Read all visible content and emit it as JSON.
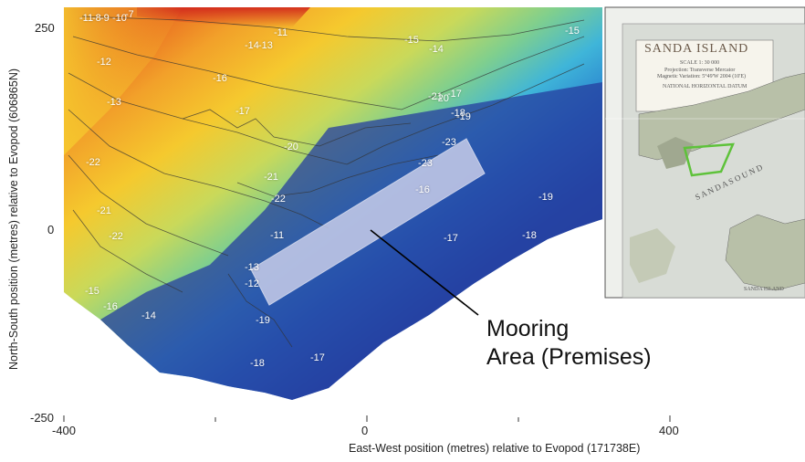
{
  "figure": {
    "x_axis": {
      "label": "East-West position (metres) relative to Evopod (171738E)",
      "ticks": [
        "-400",
        "0",
        "400"
      ]
    },
    "y_axis": {
      "label": "North-South position (metres) relative to Evopod (606865N)",
      "ticks": [
        "250",
        "0",
        "-250"
      ]
    },
    "contour_labels": [
      "-8",
      "-9",
      "-10",
      "-7",
      "-11",
      "-11",
      "-12",
      "-13",
      "-13",
      "-14",
      "-15",
      "-14",
      "-15",
      "-16",
      "-17",
      "-17",
      "-18",
      "-19",
      "-20",
      "-21",
      "-22",
      "-23",
      "-23",
      "-16",
      "-17",
      "-18",
      "-19",
      "-20",
      "-21",
      "-22",
      "-21",
      "-22",
      "-15",
      "-16",
      "-14",
      "-13",
      "-12",
      "-19",
      "-18",
      "-17",
      "-11"
    ],
    "annotation": {
      "line1": "Mooring",
      "line2": "Area (Premises)"
    },
    "colors": {
      "shallow": "#d42a1e",
      "mid": "#f7c62a",
      "mid2": "#8fd07a",
      "deep": "#2742a0",
      "deepest": "#1d2c80",
      "mooring_box": "#c8cdea"
    }
  },
  "inset_chart": {
    "title": "SANDA ISLAND",
    "scale": "SCALE 1: 30 000",
    "projection": "Projection: Transverse Mercator",
    "variation": "Magnetic Variation: 5°49'W 2004 (10'E)",
    "datum_title": "NATIONAL HORIZONTAL DATUM",
    "sound_label": "S A N D A   S O U N D",
    "island_label": "SANDA ISLAND",
    "highlight_color": "#5ec23a"
  }
}
